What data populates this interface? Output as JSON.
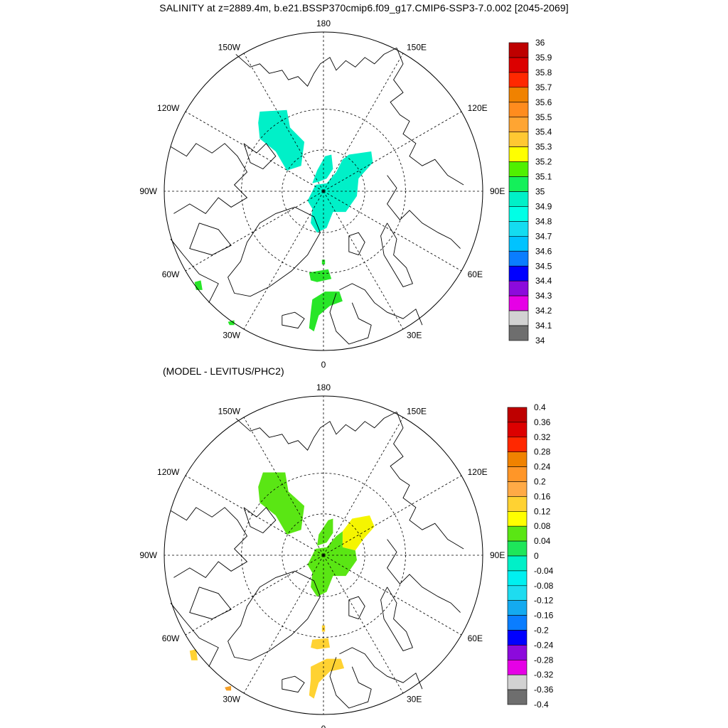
{
  "title": "SALINITY at z=2889.4m, b.e21.BSSP370cmip6.f09_g17.CMIP6-SSP3-7.0.002 [2045-2069]",
  "subtitle": "(MODEL - LEVITUS/PHC2)",
  "lon_labels": [
    {
      "text": "180",
      "angle": 0
    },
    {
      "text": "150E",
      "angle": 30
    },
    {
      "text": "120E",
      "angle": 60
    },
    {
      "text": "90E",
      "angle": 90
    },
    {
      "text": "60E",
      "angle": 120
    },
    {
      "text": "30E",
      "angle": 150
    },
    {
      "text": "0",
      "angle": 180
    },
    {
      "text": "30W",
      "angle": 210
    },
    {
      "text": "60W",
      "angle": 240
    },
    {
      "text": "90W",
      "angle": 270
    },
    {
      "text": "120W",
      "angle": 300
    },
    {
      "text": "150W",
      "angle": 330
    }
  ],
  "colors": {
    "land_outline": "#000000",
    "top_field_cyan": "#00f0c8",
    "top_field_green": "#28e628",
    "bottom_field_green": "#5ae614",
    "bottom_field_yellow": "#f5f500",
    "bottom_field_gold": "#ffd232",
    "bottom_field_orange": "#f5a028"
  },
  "colorbar_top": {
    "labels": [
      "36",
      "35.9",
      "35.8",
      "35.7",
      "35.6",
      "35.5",
      "35.4",
      "35.3",
      "35.2",
      "35.1",
      "35",
      "34.9",
      "34.8",
      "34.7",
      "34.6",
      "34.5",
      "34.4",
      "34.3",
      "34.2",
      "34.1",
      "34"
    ],
    "colors": [
      "#be0000",
      "#dc0000",
      "#ff2800",
      "#f08200",
      "#ff8c1e",
      "#ffa532",
      "#ffc832",
      "#ffff00",
      "#50f000",
      "#14f05a",
      "#00f0c8",
      "#00ffe6",
      "#14dcf0",
      "#00c3ff",
      "#0a7dff",
      "#0000ff",
      "#8c0adc",
      "#e600e6",
      "#d2d2d2",
      "#6e6e6e"
    ]
  },
  "colorbar_bottom": {
    "labels": [
      "0.4",
      "0.36",
      "0.32",
      "0.28",
      "0.24",
      "0.2",
      "0.16",
      "0.12",
      "0.08",
      "0.04",
      "0",
      "-0.04",
      "-0.08",
      "-0.12",
      "-0.16",
      "-0.2",
      "-0.24",
      "-0.28",
      "-0.32",
      "-0.36",
      "-0.4"
    ],
    "colors": [
      "#be0000",
      "#dc0000",
      "#ff2800",
      "#f08200",
      "#ff9628",
      "#ffaa46",
      "#ffd232",
      "#ffff00",
      "#5ae614",
      "#1ee65a",
      "#00f0c8",
      "#00f0f0",
      "#1edcf0",
      "#14aaf0",
      "#0a7dff",
      "#0000ff",
      "#8c0adc",
      "#e600e6",
      "#d2d2d2",
      "#6e6e6e"
    ]
  }
}
